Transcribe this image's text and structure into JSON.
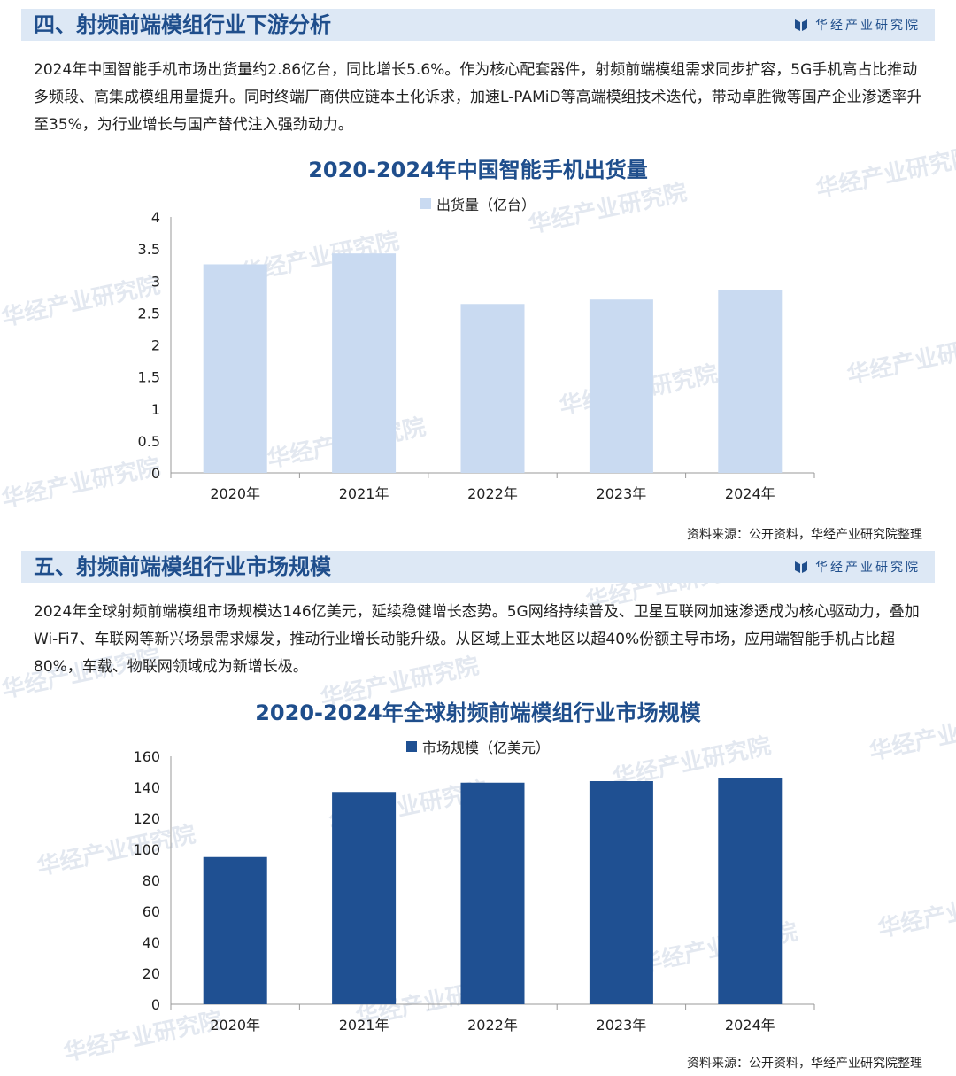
{
  "brand": {
    "name": "华经产业研究院",
    "logo_icon": "brand-logo-icon",
    "color": "#1f4e8c"
  },
  "sections": [
    {
      "title": "四、射频前端模组行业下游分析",
      "paragraph": "2024年中国智能手机市场出货量约2.86亿台，同比增长5.6%。作为核心配套器件，射频前端模组需求同步扩容，5G手机高占比推动多频段、高集成模组用量提升。同时终端厂商供应链本土化诉求，加速L-PAMiD等高端模组技术迭代，带动卓胜微等国产企业渗透率升至35%，为行业增长与国产替代注入强劲动力。",
      "source": "资料来源：公开资料，华经产业研究院整理"
    },
    {
      "title": "五、射频前端模组行业市场规模",
      "paragraph": "2024年全球射频前端模组市场规模达146亿美元，延续稳健增长态势。5G网络持续普及、卫星互联网加速渗透成为核心驱动力，叠加Wi-Fi7、车联网等新兴场景需求爆发，推动行业增长动能升级。从区域上亚太地区以超40%份额主导市场，应用端智能手机占比超80%，车载、物联网领域成为新增长极。",
      "source": "资料来源：公开资料，华经产业研究院整理"
    }
  ],
  "watermark": {
    "text": "华经产业研究院"
  },
  "chart_data": [
    {
      "type": "bar",
      "title": "2020-2024年中国智能手机出货量",
      "categories": [
        "2020年",
        "2021年",
        "2022年",
        "2023年",
        "2024年"
      ],
      "series": [
        {
          "name": "出货量（亿台）",
          "values": [
            3.26,
            3.43,
            2.64,
            2.71,
            2.86
          ],
          "color": "#c9daf1"
        }
      ],
      "ylim": [
        0,
        4
      ],
      "yticks": [
        "0",
        "0.5",
        "1",
        "1.5",
        "2",
        "2.5",
        "3",
        "3.5",
        "4"
      ],
      "legend": "top-center",
      "grid": false
    },
    {
      "type": "bar",
      "title": "2020-2024年全球射频前端模组行业市场规模",
      "categories": [
        "2020年",
        "2021年",
        "2022年",
        "2023年",
        "2024年"
      ],
      "series": [
        {
          "name": "市场规模（亿美元）",
          "values": [
            95,
            137,
            143,
            144,
            146
          ],
          "color": "#1f5092"
        }
      ],
      "ylim": [
        0,
        160
      ],
      "yticks": [
        "0",
        "20",
        "40",
        "60",
        "80",
        "100",
        "120",
        "140",
        "160"
      ],
      "legend": "top-center",
      "grid": false
    }
  ]
}
